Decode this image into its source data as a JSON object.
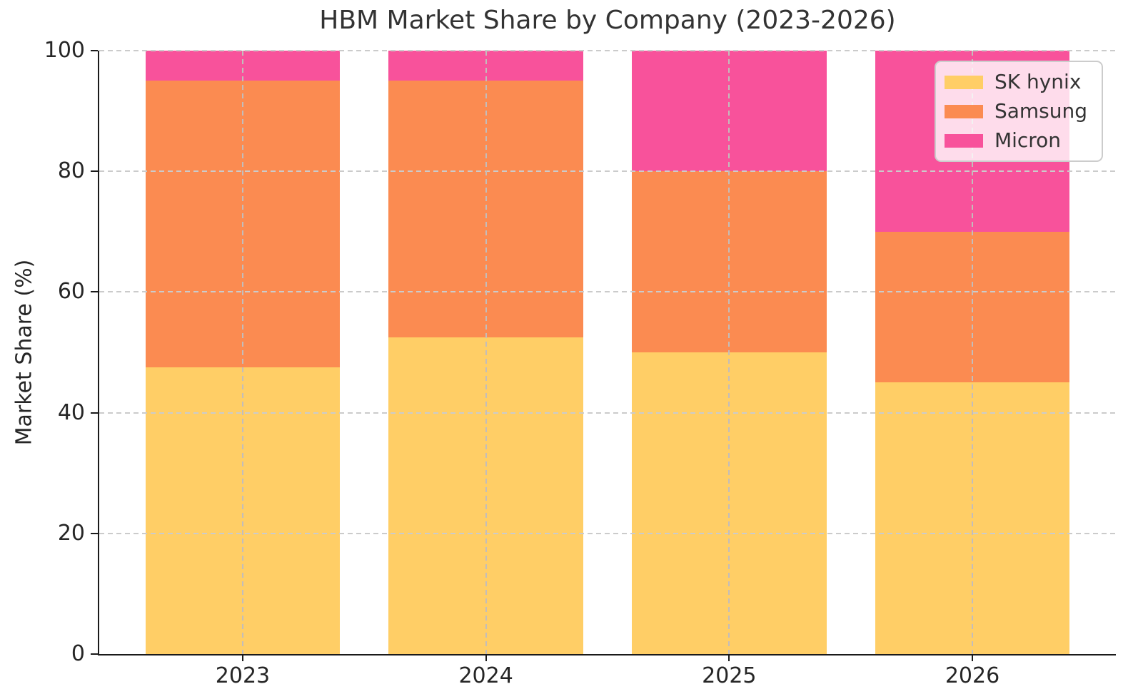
{
  "chart_data": {
    "type": "bar",
    "stacked": true,
    "title": "HBM Market Share by Company (2023-2026)",
    "xlabel": "",
    "ylabel": "Market Share (%)",
    "categories": [
      "2023",
      "2024",
      "2025",
      "2026"
    ],
    "series": [
      {
        "name": "SK hynix",
        "color": "#FFCE66",
        "values": [
          47.5,
          52.5,
          50,
          45
        ]
      },
      {
        "name": "Samsung",
        "color": "#FB8B51",
        "values": [
          47.5,
          42.5,
          30,
          25
        ]
      },
      {
        "name": "Micron",
        "color": "#F8529B",
        "values": [
          5,
          5,
          20,
          30
        ]
      }
    ],
    "ylim": [
      0,
      100
    ],
    "yticks": [
      0,
      20,
      40,
      60,
      80,
      100
    ],
    "grid": "dashed-both-axes",
    "grid_color": "#cbcbcb",
    "legend_position": "upper-right",
    "background_color": "#ffffff",
    "axis_color": "#1a1a1a"
  }
}
